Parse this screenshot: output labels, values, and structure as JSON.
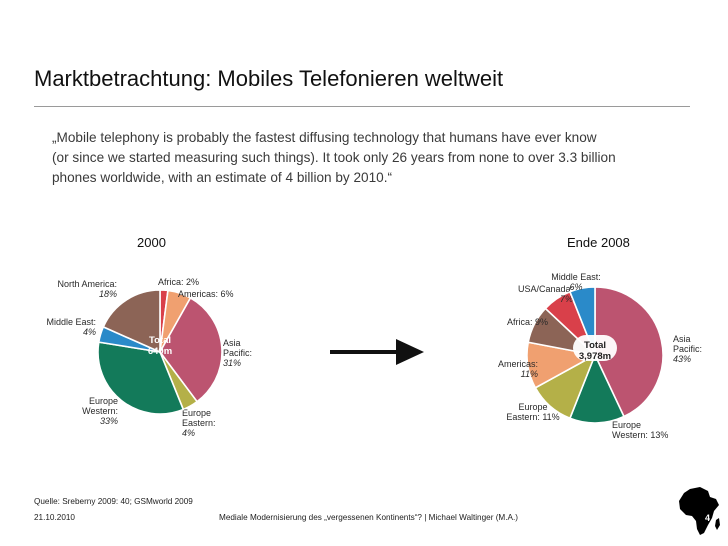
{
  "slide": {
    "title": "Marktbetrachtung: Mobiles Telefonieren weltweit",
    "quote_lines": [
      "„Mobile telephony is probably the fastest diffusing technology that humans have ever know",
      "(or since we started measuring such things). It took only 26 years from none to over 3.3 billion",
      "phones worldwide, with an estimate of 4 billion by 2010.“"
    ],
    "label_2000": "2000",
    "label_2008": "Ende 2008",
    "source": "Quelle: Sreberny 2009: 40; GSMworld 2009",
    "date": "21.10.2010",
    "center_footer": "Mediale Modernisierung des „vergessenen Kontinents“? | Michael Waltinger (M.A.)",
    "slide_number": "4"
  },
  "chart_data": [
    {
      "type": "pie",
      "title": "2000",
      "center_label": [
        "Total",
        "640m"
      ],
      "unit": "%",
      "slices": [
        {
          "name": "Africa",
          "value": 2,
          "color": "#d9404a",
          "label_lines": [
            "Africa: 2%"
          ]
        },
        {
          "name": "Americas",
          "value": 6,
          "color": "#f0a070",
          "label_lines": [
            "Americas: 6%"
          ]
        },
        {
          "name": "Asia Pacific",
          "value": 31,
          "color": "#bc5470",
          "label_lines": [
            "Asia",
            "Pacific:",
            "31%"
          ]
        },
        {
          "name": "Europe Eastern",
          "value": 4,
          "color": "#b4b048",
          "label_lines": [
            "Europe",
            "Eastern:",
            "4%"
          ]
        },
        {
          "name": "Europe Western",
          "value": 33,
          "color": "#137a5a",
          "label_lines": [
            "Europe",
            "Western:",
            "33%"
          ]
        },
        {
          "name": "Middle East",
          "value": 4,
          "color": "#2a8ac9",
          "label_lines": [
            "Middle East:",
            "4%"
          ]
        },
        {
          "name": "North America",
          "value": 18,
          "color": "#8c6456",
          "label_lines": [
            "North America:",
            "18%"
          ]
        }
      ]
    },
    {
      "type": "pie",
      "title": "Ende 2008",
      "center_label": [
        "Total",
        "3,978m"
      ],
      "unit": "%",
      "slices": [
        {
          "name": "Asia Pacific",
          "value": 43,
          "color": "#bc5470",
          "label_lines": [
            "Asia",
            "Pacific:",
            "43%"
          ]
        },
        {
          "name": "Europe Western",
          "value": 13,
          "color": "#137a5a",
          "label_lines": [
            "Europe",
            "Western: 13%"
          ]
        },
        {
          "name": "Europe Eastern",
          "value": 11,
          "color": "#b4b048",
          "label_lines": [
            "Europe",
            "Eastern: 11%"
          ]
        },
        {
          "name": "Americas",
          "value": 11,
          "color": "#f0a070",
          "label_lines": [
            "Americas:",
            "11%"
          ]
        },
        {
          "name": "Africa",
          "value": 9,
          "color": "#8c6456",
          "label_lines": [
            "Africa: 9%"
          ]
        },
        {
          "name": "USA/Canada",
          "value": 7,
          "color": "#d9404a",
          "label_lines": [
            "USA/Canada:",
            "7%"
          ]
        },
        {
          "name": "Middle East",
          "value": 6,
          "color": "#2a8ac9",
          "label_lines": [
            "Middle East:",
            "6%"
          ]
        }
      ]
    }
  ]
}
